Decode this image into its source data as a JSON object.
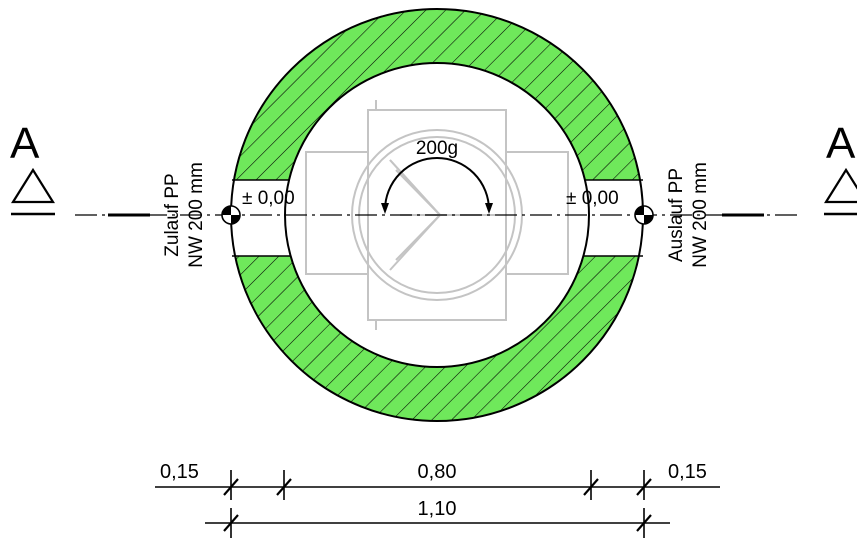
{
  "section_marker": {
    "letter": "A"
  },
  "inlet": {
    "line1": "Zulauf PP",
    "line2": "NW 200 mm",
    "level": "± 0,00"
  },
  "outlet": {
    "line1": "Auslauf PP",
    "line2": "NW 200 mm",
    "level": "± 0,00"
  },
  "flow_angle": "200g",
  "dimensions": {
    "wall_left": "0,15",
    "inner_width": "0,80",
    "wall_right": "0,15",
    "total_width": "1,10"
  },
  "colors": {
    "hatch_fill": "#6fe85b",
    "line": "#000000",
    "insert": "#c4c4c4"
  }
}
